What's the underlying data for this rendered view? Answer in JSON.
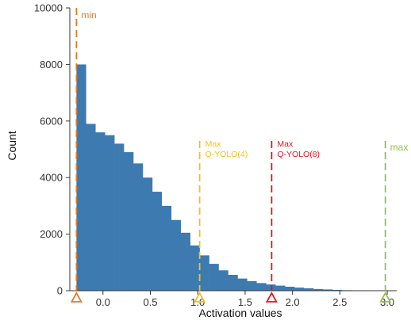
{
  "chart_data": {
    "type": "histogram",
    "xlabel": "Activation values",
    "ylabel": "Count",
    "xlim": [
      -0.35,
      3.1
    ],
    "ylim": [
      0,
      10000
    ],
    "x_ticks": [
      {
        "value": 0.0,
        "label": "0.0"
      },
      {
        "value": 0.5,
        "label": "0.5"
      },
      {
        "value": 1.0,
        "label": "1.0"
      },
      {
        "value": 1.5,
        "label": "1.5"
      },
      {
        "value": 2.0,
        "label": "2.0"
      },
      {
        "value": 2.5,
        "label": "2.5"
      },
      {
        "value": 3.0,
        "label": "3.0"
      }
    ],
    "y_ticks": [
      {
        "value": 0,
        "label": "0"
      },
      {
        "value": 2000,
        "label": "2000"
      },
      {
        "value": 4000,
        "label": "4000"
      },
      {
        "value": 6000,
        "label": "6000"
      },
      {
        "value": 8000,
        "label": "8000"
      },
      {
        "value": 10000,
        "label": "10000"
      }
    ],
    "bar_color": "#3d7ab0",
    "histogram": {
      "bin_start": -0.28,
      "bin_width": 0.1,
      "counts": [
        8000,
        5900,
        5600,
        5500,
        5200,
        4900,
        4500,
        4000,
        3500,
        3000,
        2500,
        2050,
        1600,
        1250,
        950,
        720,
        560,
        430,
        340,
        270,
        220,
        180,
        140,
        110,
        85,
        60,
        45,
        30,
        18,
        10,
        5,
        2
      ]
    },
    "reference_lines": [
      {
        "x": -0.28,
        "label": "min",
        "color": "#e07b2e",
        "marker": "triangle"
      },
      {
        "x": 1.02,
        "label_line1": "Max",
        "label_line2": "Q-YOLO(4)",
        "color": "#f2c21b",
        "marker": "triangle"
      },
      {
        "x": 1.78,
        "label_line1": "Max",
        "label_line2": "Q-YOLO(8)",
        "color": "#e3141b",
        "marker": "triangle"
      },
      {
        "x": 2.98,
        "label": "max",
        "color": "#8dc34a",
        "marker": "triangle"
      }
    ]
  }
}
